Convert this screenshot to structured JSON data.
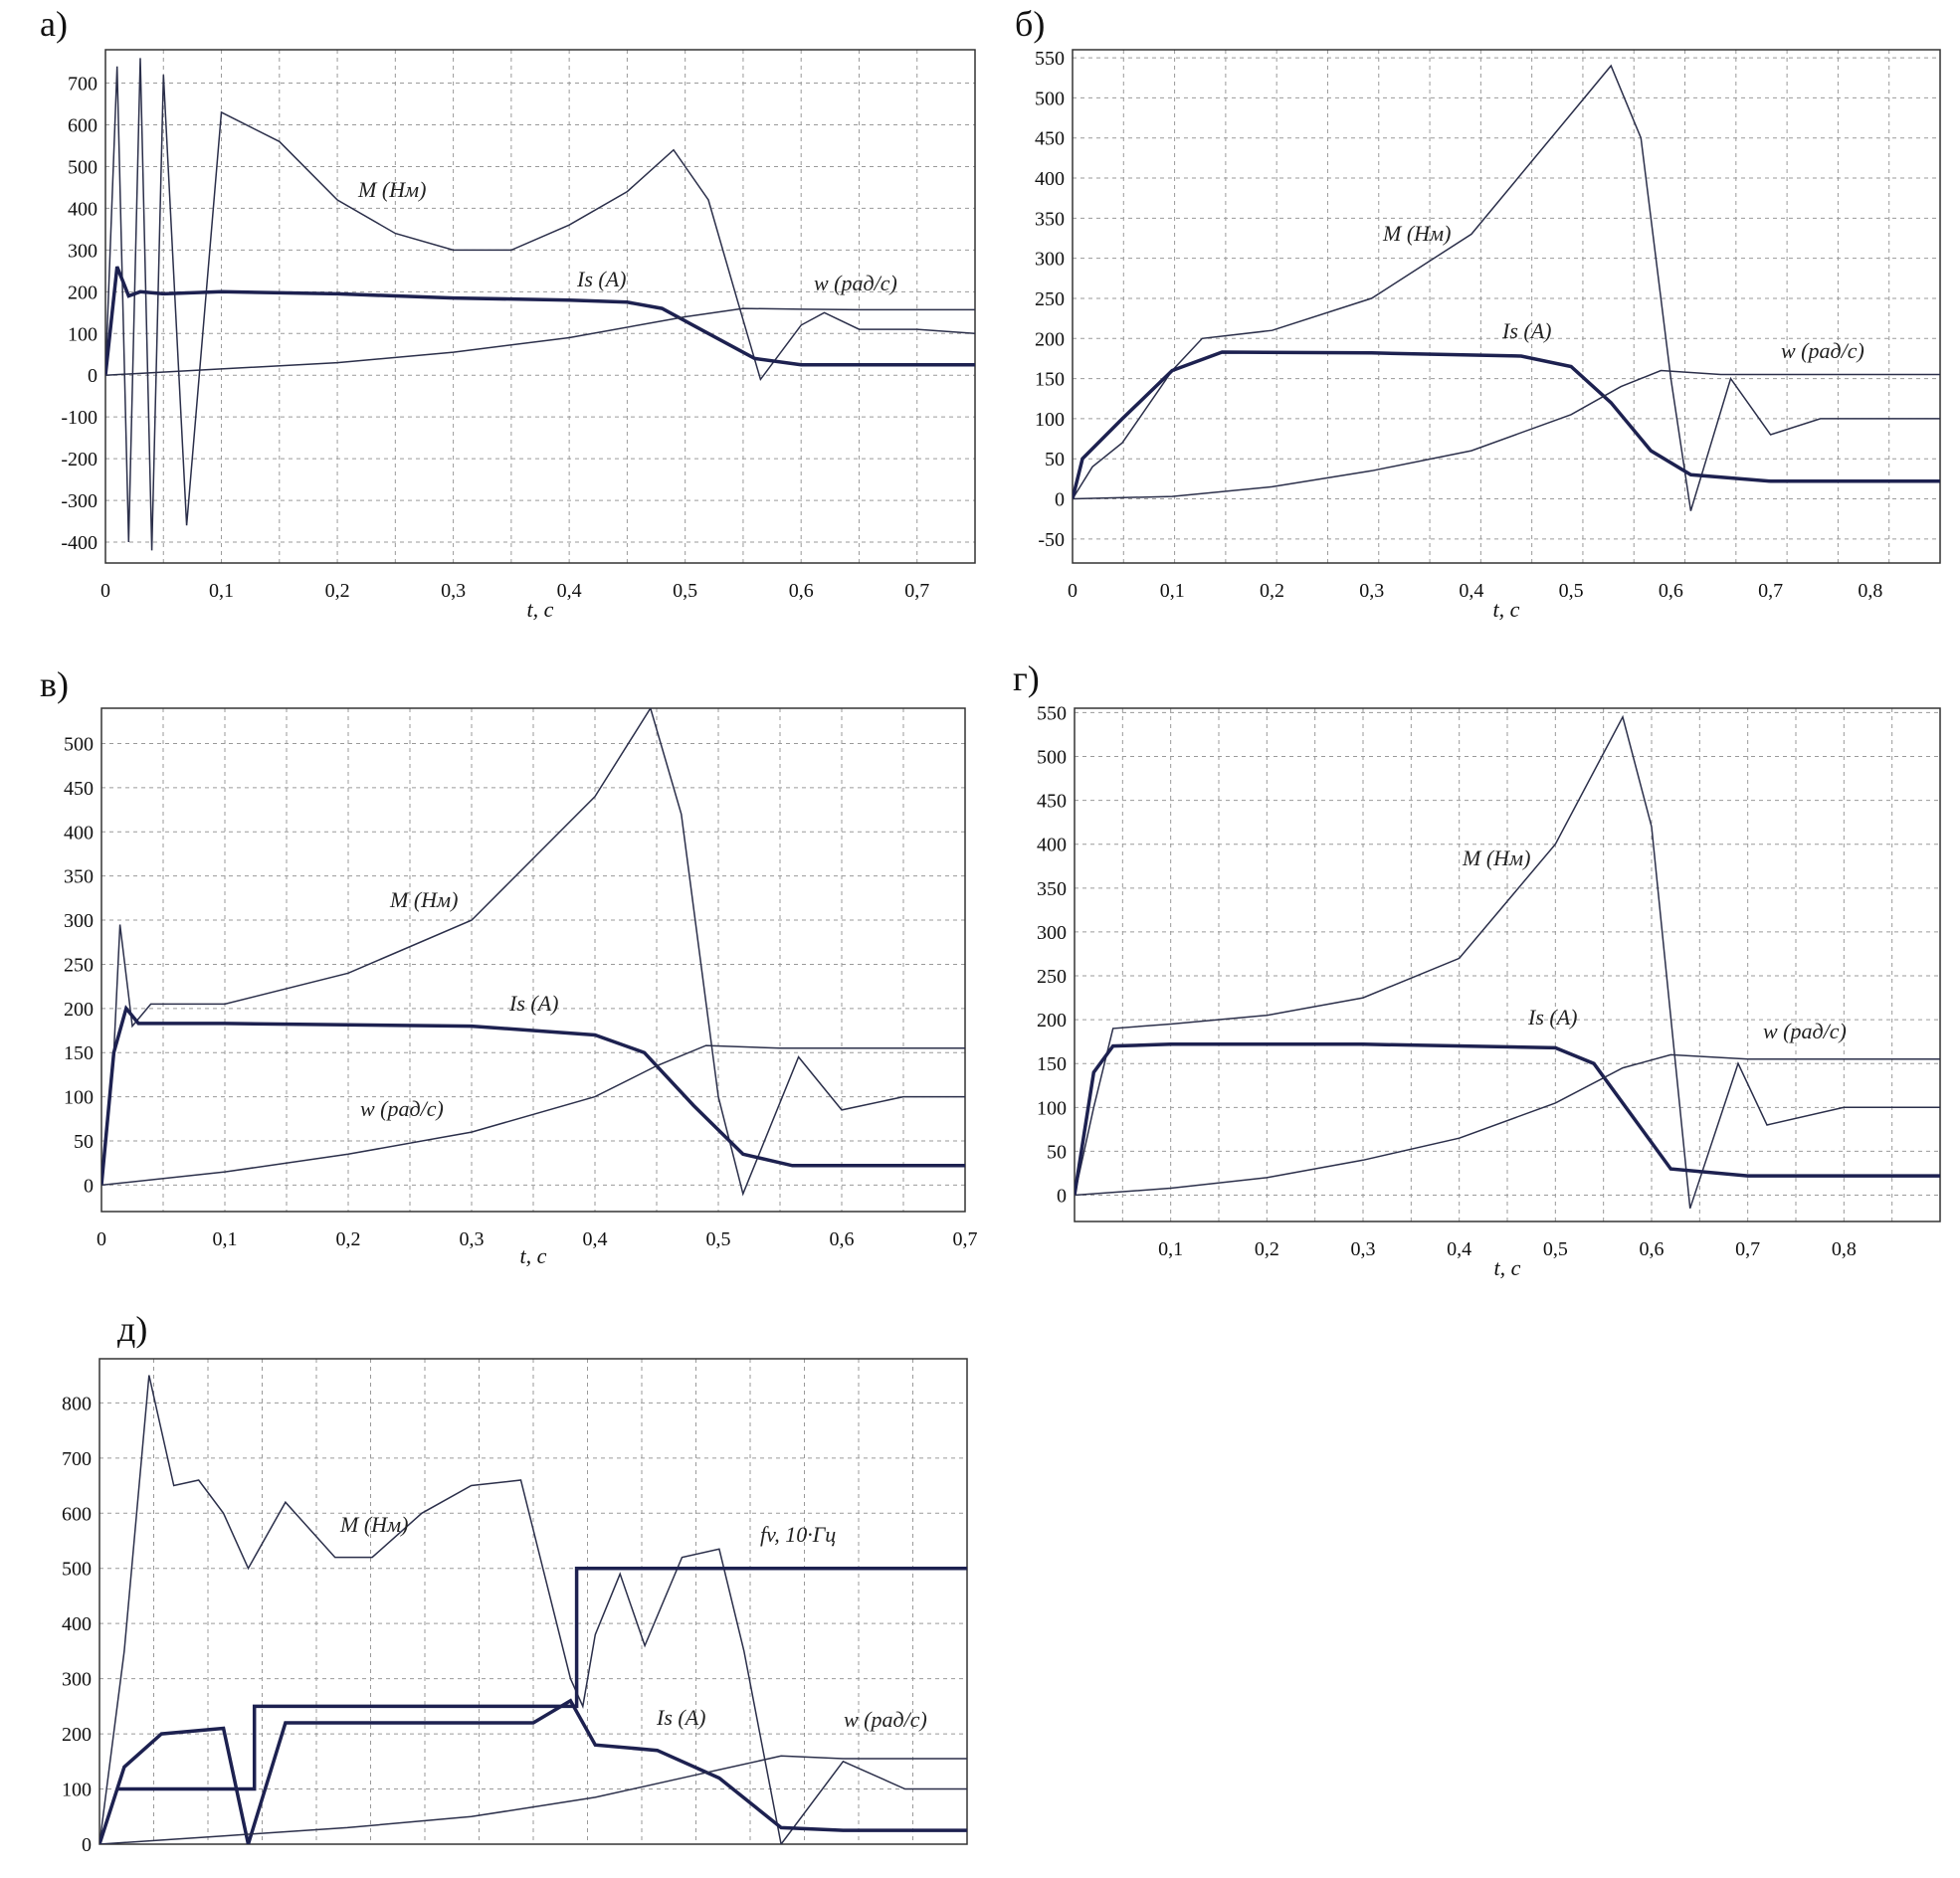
{
  "chart_data": [
    {
      "panel": "а)",
      "type": "line",
      "xlabel": "t, c",
      "xlim": [
        0,
        0.75
      ],
      "ylim": [
        -450,
        780
      ],
      "xticks": [
        "0",
        "0,1",
        "0,2",
        "0,3",
        "0,4",
        "0,5",
        "0,6",
        "0,7"
      ],
      "yticks": [
        "-400",
        "-300",
        "-200",
        "-100",
        "0",
        "100",
        "200",
        "300",
        "400",
        "500",
        "600",
        "700"
      ],
      "series": [
        {
          "name": "M (Нм)",
          "x": [
            0,
            0.01,
            0.02,
            0.03,
            0.04,
            0.05,
            0.07,
            0.1,
            0.15,
            0.2,
            0.25,
            0.3,
            0.35,
            0.4,
            0.45,
            0.49,
            0.52,
            0.545,
            0.565,
            0.6,
            0.62,
            0.65,
            0.7,
            0.75
          ],
          "y": [
            0,
            740,
            -400,
            760,
            -420,
            720,
            -360,
            630,
            560,
            420,
            340,
            300,
            300,
            360,
            440,
            540,
            420,
            180,
            -10,
            120,
            150,
            110,
            110,
            100
          ]
        },
        {
          "name": "Is (A)",
          "x": [
            0,
            0.01,
            0.02,
            0.03,
            0.05,
            0.1,
            0.2,
            0.3,
            0.4,
            0.45,
            0.48,
            0.52,
            0.56,
            0.6,
            0.65,
            0.7,
            0.75
          ],
          "y": [
            0,
            260,
            190,
            200,
            195,
            200,
            195,
            185,
            180,
            175,
            160,
            100,
            40,
            25,
            25,
            25,
            25
          ]
        },
        {
          "name": "w (рад/с)",
          "x": [
            0,
            0.1,
            0.2,
            0.3,
            0.4,
            0.5,
            0.55,
            0.6,
            0.65,
            0.75
          ],
          "y": [
            0,
            15,
            30,
            55,
            90,
            140,
            160,
            158,
            157,
            157
          ]
        }
      ]
    },
    {
      "panel": "б)",
      "type": "line",
      "xlabel": "t, c",
      "xlim": [
        0,
        0.87
      ],
      "ylim": [
        -80,
        560
      ],
      "xticks": [
        "0",
        "0,1",
        "0,2",
        "0,3",
        "0,4",
        "0,5",
        "0,6",
        "0,7",
        "0,8"
      ],
      "yticks": [
        "-50",
        "0",
        "50",
        "100",
        "150",
        "200",
        "250",
        "300",
        "350",
        "400",
        "450",
        "500",
        "550"
      ],
      "series": [
        {
          "name": "M (Нм)",
          "x": [
            0,
            0.02,
            0.05,
            0.1,
            0.13,
            0.2,
            0.3,
            0.4,
            0.5,
            0.54,
            0.57,
            0.6,
            0.62,
            0.66,
            0.7,
            0.75,
            0.87
          ],
          "y": [
            0,
            40,
            70,
            160,
            200,
            210,
            250,
            330,
            480,
            540,
            450,
            150,
            -15,
            150,
            80,
            100,
            100
          ]
        },
        {
          "name": "Is (A)",
          "x": [
            0,
            0.01,
            0.05,
            0.1,
            0.15,
            0.3,
            0.45,
            0.5,
            0.54,
            0.58,
            0.62,
            0.7,
            0.87
          ],
          "y": [
            0,
            50,
            100,
            160,
            183,
            182,
            178,
            165,
            120,
            60,
            30,
            22,
            22
          ]
        },
        {
          "name": "w (рад/с)",
          "x": [
            0,
            0.1,
            0.2,
            0.3,
            0.4,
            0.5,
            0.55,
            0.59,
            0.65,
            0.87
          ],
          "y": [
            0,
            3,
            15,
            35,
            60,
            105,
            140,
            160,
            155,
            155
          ]
        }
      ]
    },
    {
      "panel": "в)",
      "type": "line",
      "xlabel": "t, c",
      "xlim": [
        0,
        0.7
      ],
      "ylim": [
        -30,
        540
      ],
      "xticks": [
        "0",
        "0,1",
        "0,2",
        "0,3",
        "0,4",
        "0,5",
        "0,6",
        "0,7"
      ],
      "yticks": [
        "0",
        "50",
        "100",
        "150",
        "200",
        "250",
        "300",
        "350",
        "400",
        "450",
        "500"
      ],
      "series": [
        {
          "name": "M (Нм)",
          "x": [
            0,
            0.01,
            0.015,
            0.025,
            0.04,
            0.1,
            0.2,
            0.3,
            0.4,
            0.445,
            0.47,
            0.5,
            0.52,
            0.565,
            0.6,
            0.65,
            0.7
          ],
          "y": [
            0,
            150,
            295,
            180,
            205,
            205,
            240,
            300,
            440,
            540,
            420,
            100,
            -10,
            145,
            85,
            100,
            100
          ]
        },
        {
          "name": "Is (A)",
          "x": [
            0,
            0.01,
            0.02,
            0.03,
            0.1,
            0.3,
            0.4,
            0.44,
            0.48,
            0.52,
            0.56,
            0.6,
            0.7
          ],
          "y": [
            0,
            150,
            200,
            183,
            183,
            180,
            170,
            150,
            90,
            35,
            22,
            22,
            22
          ]
        },
        {
          "name": "w (рад/с)",
          "x": [
            0,
            0.1,
            0.2,
            0.3,
            0.4,
            0.45,
            0.49,
            0.55,
            0.7
          ],
          "y": [
            0,
            15,
            35,
            60,
            100,
            135,
            158,
            155,
            155
          ]
        }
      ]
    },
    {
      "panel": "г)",
      "type": "line",
      "xlabel": "t, c",
      "xlim": [
        0,
        0.9
      ],
      "ylim": [
        -30,
        555
      ],
      "xticks": [
        "0,1",
        "0,2",
        "0,3",
        "0,4",
        "0,5",
        "0,6",
        "0,7",
        "0,8"
      ],
      "yticks": [
        "0",
        "50",
        "100",
        "150",
        "200",
        "250",
        "300",
        "350",
        "400",
        "450",
        "500",
        "550"
      ],
      "series": [
        {
          "name": "M (Нм)",
          "x": [
            0,
            0.02,
            0.04,
            0.1,
            0.2,
            0.3,
            0.4,
            0.5,
            0.57,
            0.6,
            0.64,
            0.69,
            0.72,
            0.8,
            0.9
          ],
          "y": [
            0,
            100,
            190,
            195,
            205,
            225,
            270,
            400,
            545,
            420,
            -15,
            150,
            80,
            100,
            100
          ]
        },
        {
          "name": "Is (A)",
          "x": [
            0,
            0.02,
            0.04,
            0.1,
            0.3,
            0.5,
            0.54,
            0.58,
            0.62,
            0.7,
            0.9
          ],
          "y": [
            0,
            140,
            170,
            172,
            172,
            168,
            150,
            90,
            30,
            22,
            22
          ]
        },
        {
          "name": "w (рад/с)",
          "x": [
            0,
            0.1,
            0.2,
            0.3,
            0.4,
            0.5,
            0.57,
            0.62,
            0.7,
            0.9
          ],
          "y": [
            0,
            8,
            20,
            40,
            65,
            105,
            145,
            160,
            155,
            155
          ]
        }
      ]
    },
    {
      "panel": "д)",
      "type": "line",
      "xlabel": "",
      "xlim": [
        0,
        0.7
      ],
      "ylim": [
        0,
        880
      ],
      "xticks": [],
      "yticks": [
        "0",
        "100",
        "200",
        "300",
        "400",
        "500",
        "600",
        "700",
        "800"
      ],
      "series": [
        {
          "name": "M (Нм)",
          "x": [
            0,
            0.02,
            0.04,
            0.06,
            0.08,
            0.1,
            0.12,
            0.15,
            0.19,
            0.22,
            0.26,
            0.3,
            0.34,
            0.38,
            0.39,
            0.4,
            0.42,
            0.44,
            0.47,
            0.5,
            0.52,
            0.55,
            0.6,
            0.65,
            0.7
          ],
          "y": [
            0,
            350,
            850,
            650,
            660,
            600,
            500,
            620,
            520,
            520,
            600,
            650,
            660,
            300,
            250,
            380,
            490,
            360,
            520,
            535,
            350,
            0,
            150,
            100,
            100
          ]
        },
        {
          "name": "Is (A)",
          "x": [
            0,
            0.02,
            0.05,
            0.1,
            0.12,
            0.15,
            0.2,
            0.25,
            0.3,
            0.35,
            0.38,
            0.4,
            0.45,
            0.5,
            0.55,
            0.6,
            0.7
          ],
          "y": [
            0,
            140,
            200,
            210,
            0,
            220,
            220,
            220,
            220,
            220,
            260,
            180,
            170,
            120,
            30,
            25,
            25
          ]
        },
        {
          "name": "fv, 10·Гц",
          "x": [
            0.015,
            0.125,
            0.125,
            0.385,
            0.385,
            0.7
          ],
          "y": [
            100,
            100,
            250,
            250,
            500,
            500
          ]
        },
        {
          "name": "w (рад/с)",
          "x": [
            0,
            0.1,
            0.2,
            0.3,
            0.4,
            0.48,
            0.55,
            0.6,
            0.7
          ],
          "y": [
            0,
            15,
            30,
            50,
            85,
            125,
            160,
            155,
            155
          ]
        }
      ]
    }
  ]
}
